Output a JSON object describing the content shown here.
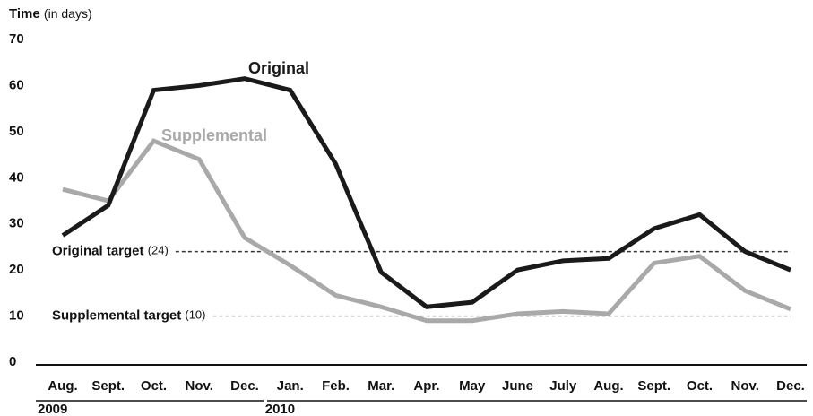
{
  "chart_data": {
    "type": "line",
    "ylabel": "Time",
    "ylabel_unit": "(in days)",
    "category_groups": [
      {
        "label": "2009",
        "categories": [
          "Aug.",
          "Sept.",
          "Oct.",
          "Nov.",
          "Dec."
        ]
      },
      {
        "label": "2010",
        "categories": [
          "Jan.",
          "Feb.",
          "Mar.",
          "Apr.",
          "May",
          "June",
          "July",
          "Aug.",
          "Sept.",
          "Oct.",
          "Nov.",
          "Dec."
        ]
      }
    ],
    "series": [
      {
        "name": "Original",
        "color": "#1a1a1a",
        "values": [
          27.5,
          34,
          59,
          60,
          61.5,
          59,
          43,
          19.5,
          12,
          13,
          20,
          22,
          22.5,
          29,
          32,
          24,
          20
        ]
      },
      {
        "name": "Supplemental",
        "color": "#a9a9a9",
        "values": [
          37.5,
          35,
          48,
          44,
          27,
          21,
          14.5,
          12,
          9,
          9,
          10.5,
          11,
          10.5,
          21.5,
          23,
          15.5,
          11.5
        ]
      }
    ],
    "targets": [
      {
        "label": "Original target",
        "value": 24,
        "value_label": "(24)",
        "color": "#333333"
      },
      {
        "label": "Supplemental target",
        "value": 10,
        "value_label": "(10)",
        "color": "#a9a9a9"
      }
    ],
    "ylim": [
      0,
      70
    ],
    "yticks": [
      0,
      10,
      20,
      30,
      40,
      50,
      60,
      70
    ],
    "grid": false
  }
}
